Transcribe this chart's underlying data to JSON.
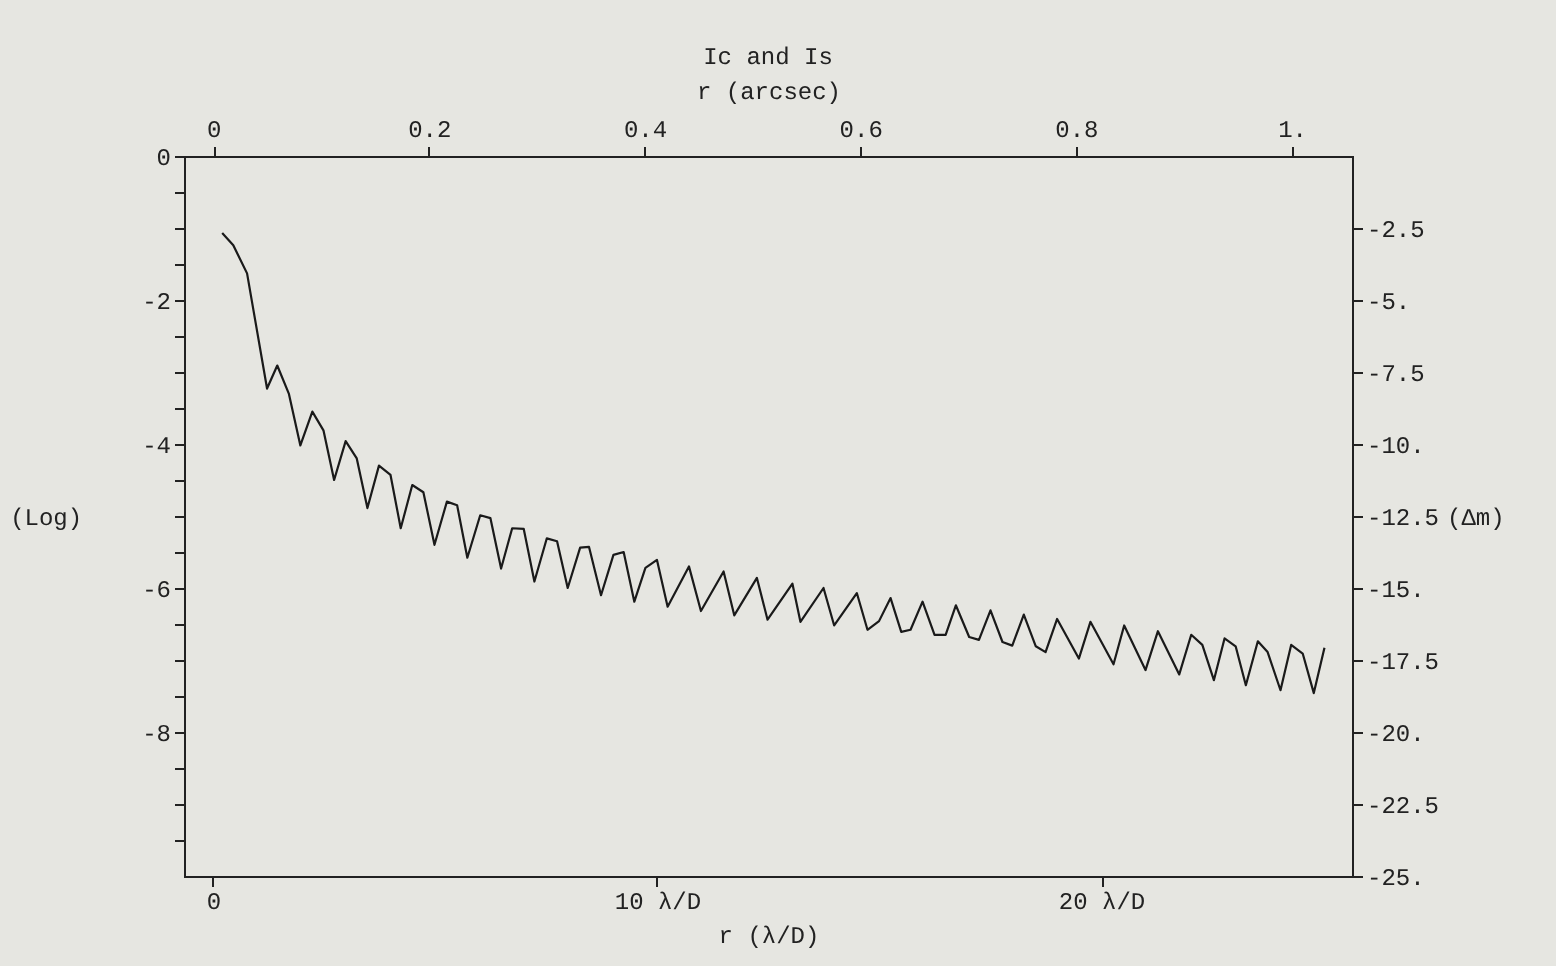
{
  "chart_data": {
    "type": "line",
    "title": "Ic and Is",
    "xlabel": "r (λ/D)",
    "ylabel": "(Log)",
    "x2label": "r (arcsec)",
    "y2label": "(Δm)",
    "xlim": [
      -0.65,
      25.65
    ],
    "xticks": [
      0,
      {
        "value": 10,
        "label": "10 λ/D"
      },
      {
        "value": 20,
        "label": "20 λ/D"
      }
    ],
    "x2lim": [
      -0.027,
      1.056
    ],
    "x2ticks": [
      0,
      0.2,
      0.4,
      0.6,
      0.8,
      {
        "value": 1,
        "label": "1."
      }
    ],
    "ylim": [
      -10,
      0
    ],
    "yticks": [
      0,
      {
        "value": -0.5,
        "label": null
      },
      {
        "value": -1,
        "label": null
      },
      {
        "value": -1.5,
        "label": null
      },
      -2,
      {
        "value": -2.5,
        "label": null
      },
      {
        "value": -3,
        "label": null
      },
      {
        "value": -3.5,
        "label": null
      },
      -4,
      {
        "value": -4.5,
        "label": null
      },
      {
        "value": -5,
        "label": null
      },
      {
        "value": -5.5,
        "label": null
      },
      -6,
      {
        "value": -6.5,
        "label": null
      },
      {
        "value": -7,
        "label": null
      },
      {
        "value": -7.5,
        "label": null
      },
      -8,
      {
        "value": -8.5,
        "label": null
      },
      {
        "value": -9,
        "label": null
      },
      {
        "value": -9.5,
        "label": null
      }
    ],
    "y2lim": [
      -25,
      0
    ],
    "y2ticks": [
      -2.5,
      {
        "value": -5,
        "label": "-5."
      },
      -7.5,
      {
        "value": -10,
        "label": "-10."
      },
      -12.5,
      {
        "value": -15,
        "label": "-15."
      },
      -17.5,
      {
        "value": -20,
        "label": "-20."
      },
      -22.5,
      {
        "value": -25,
        "label": "-25."
      }
    ],
    "grid": false,
    "marker": "none",
    "line_style": "solid",
    "series": [
      {
        "color": "#1a1a1a",
        "x": [
          0.21,
          0.46,
          0.77,
          1.22,
          1.45,
          1.71,
          1.97,
          2.24,
          2.49,
          2.73,
          2.99,
          3.24,
          3.48,
          3.74,
          4.0,
          4.23,
          4.49,
          4.74,
          4.99,
          5.27,
          5.5,
          5.73,
          6.02,
          6.25,
          6.49,
          6.74,
          7.0,
          7.24,
          7.52,
          7.75,
          7.99,
          8.27,
          8.47,
          8.74,
          9.02,
          9.25,
          9.49,
          9.74,
          10.0,
          10.24,
          10.72,
          10.99,
          11.5,
          11.74,
          12.25,
          12.49,
          13.05,
          13.23,
          13.75,
          13.99,
          14.5,
          14.74,
          15.0,
          15.26,
          15.5,
          15.71,
          15.98,
          16.25,
          16.5,
          16.73,
          17.03,
          17.25,
          17.51,
          17.78,
          18.0,
          18.26,
          18.53,
          18.75,
          19.01,
          19.5,
          19.76,
          20.28,
          20.52,
          21.0,
          21.28,
          21.76,
          22.03,
          22.28,
          22.54,
          22.78,
          23.03,
          23.26,
          23.53,
          23.75,
          24.04,
          24.28,
          24.54,
          24.79,
          25.03
        ],
        "values": [
          -1.07,
          -1.24,
          -1.63,
          -3.23,
          -2.91,
          -3.3,
          -4.02,
          -3.55,
          -3.81,
          -4.5,
          -3.96,
          -4.2,
          -4.89,
          -4.3,
          -4.43,
          -5.17,
          -4.57,
          -4.67,
          -5.4,
          -4.8,
          -4.85,
          -5.58,
          -4.99,
          -5.03,
          -5.73,
          -5.17,
          -5.18,
          -5.91,
          -5.31,
          -5.35,
          -6.0,
          -5.44,
          -5.43,
          -6.1,
          -5.54,
          -5.5,
          -6.19,
          -5.72,
          -5.61,
          -6.26,
          -5.7,
          -6.32,
          -5.77,
          -6.38,
          -5.86,
          -6.44,
          -5.94,
          -6.47,
          -6.0,
          -6.52,
          -6.07,
          -6.58,
          -6.46,
          -6.14,
          -6.61,
          -6.58,
          -6.19,
          -6.65,
          -6.65,
          -6.24,
          -6.68,
          -6.72,
          -6.31,
          -6.75,
          -6.8,
          -6.37,
          -6.81,
          -6.89,
          -6.43,
          -6.98,
          -6.47,
          -7.06,
          -6.52,
          -7.14,
          -6.6,
          -7.2,
          -6.65,
          -6.79,
          -7.28,
          -6.7,
          -6.81,
          -7.35,
          -6.74,
          -6.89,
          -7.42,
          -6.79,
          -6.91,
          -7.46,
          -6.83
        ]
      }
    ]
  }
}
